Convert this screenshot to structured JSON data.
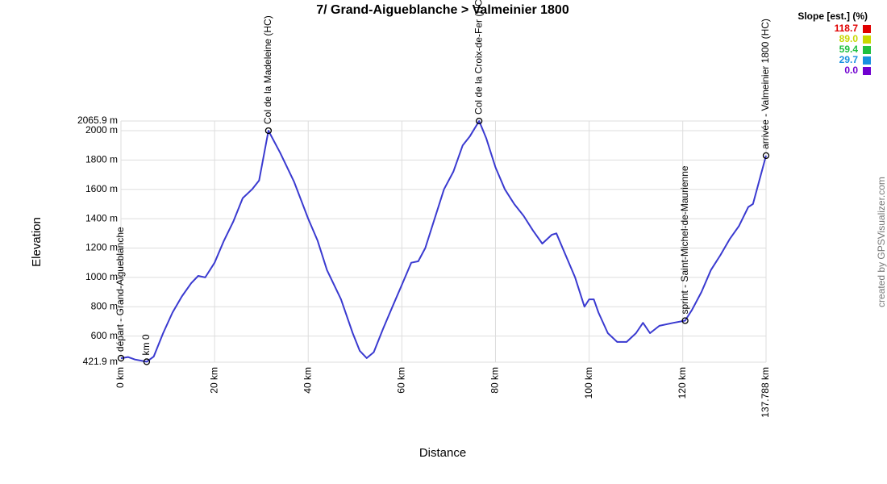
{
  "chart_data": {
    "type": "line",
    "title": "7/ Grand-Aigueblanche > Valmeinier 1800",
    "x_label": "Distance",
    "y_label": "Elevation",
    "credit": "created by GPSVisualizer.com",
    "color": "#3a3ad0",
    "grid": true,
    "xlim": [
      0,
      137.788
    ],
    "ylim": [
      421.9,
      2065.9
    ],
    "xticks": [
      {
        "value": 0,
        "label": "0 km"
      },
      {
        "value": 20,
        "label": "20 km"
      },
      {
        "value": 40,
        "label": "40 km"
      },
      {
        "value": 60,
        "label": "60 km"
      },
      {
        "value": 80,
        "label": "80 km"
      },
      {
        "value": 100,
        "label": "100 km"
      },
      {
        "value": 120,
        "label": "120 km"
      },
      {
        "value": 137.788,
        "label": "137.788 km"
      }
    ],
    "yticks": [
      {
        "value": 421.9,
        "label": "421.9 m"
      },
      {
        "value": 600,
        "label": "600 m"
      },
      {
        "value": 800,
        "label": "800 m"
      },
      {
        "value": 1000,
        "label": "1000 m"
      },
      {
        "value": 1200,
        "label": "1200 m"
      },
      {
        "value": 1400,
        "label": "1400 m"
      },
      {
        "value": 1600,
        "label": "1600 m"
      },
      {
        "value": 1800,
        "label": "1800 m"
      },
      {
        "value": 2000,
        "label": "2000 m"
      },
      {
        "value": 2065.9,
        "label": "2065.9 m"
      }
    ],
    "x": [
      0,
      1.5,
      3,
      5.5,
      7,
      9,
      11,
      13,
      15,
      16.5,
      18,
      20,
      22,
      24,
      26,
      28,
      29.5,
      31.5,
      34,
      37,
      40,
      42,
      44,
      47,
      49.5,
      51,
      52.5,
      54,
      56,
      58,
      60,
      62,
      63.5,
      65,
      67,
      69,
      71,
      73,
      74.5,
      76.5,
      78,
      80,
      82,
      84,
      86,
      88,
      90,
      92,
      93,
      95,
      97,
      99,
      100,
      101,
      102,
      104,
      106,
      108,
      110,
      111.5,
      113,
      115,
      118,
      120.5,
      122,
      124,
      126,
      128,
      130,
      132,
      134,
      135,
      137.788
    ],
    "values": [
      449,
      457,
      440,
      425,
      460,
      620,
      760,
      870,
      960,
      1010,
      1000,
      1100,
      1250,
      1380,
      1540,
      1600,
      1660,
      2000,
      1850,
      1650,
      1400,
      1250,
      1050,
      850,
      620,
      500,
      450,
      490,
      650,
      800,
      950,
      1100,
      1110,
      1200,
      1400,
      1600,
      1720,
      1900,
      1960,
      2065.9,
      1950,
      1750,
      1600,
      1500,
      1420,
      1320,
      1230,
      1290,
      1300,
      1150,
      1000,
      800,
      850,
      850,
      760,
      620,
      560,
      560,
      620,
      690,
      620,
      670,
      690,
      705,
      780,
      900,
      1050,
      1150,
      1260,
      1350,
      1480,
      1500,
      1830
    ],
    "waypoints": [
      {
        "x": 0,
        "y": 449,
        "label": "départ - Grand-Aigueblanche"
      },
      {
        "x": 5.5,
        "y": 425,
        "label": "km 0"
      },
      {
        "x": 31.5,
        "y": 2000,
        "label": "Col de la Madeleine (HC)"
      },
      {
        "x": 76.5,
        "y": 2065.9,
        "label": "Col de la Croix-de-Fer (HC)"
      },
      {
        "x": 120.5,
        "y": 705,
        "label": "sprint - Saint-Michel-de-Maurienne"
      },
      {
        "x": 137.788,
        "y": 1830,
        "label": "arrivée - Valmeinier 1800 (HC)"
      }
    ],
    "slope_legend": {
      "title": "Slope [est.] (%)",
      "items": [
        {
          "label": "118.7",
          "color": "#e00000"
        },
        {
          "label": "89.0",
          "color": "#c8d800"
        },
        {
          "label": "59.4",
          "color": "#20c040"
        },
        {
          "label": "29.7",
          "color": "#1890e0"
        },
        {
          "label": "0.0",
          "color": "#7000d0"
        }
      ]
    }
  }
}
